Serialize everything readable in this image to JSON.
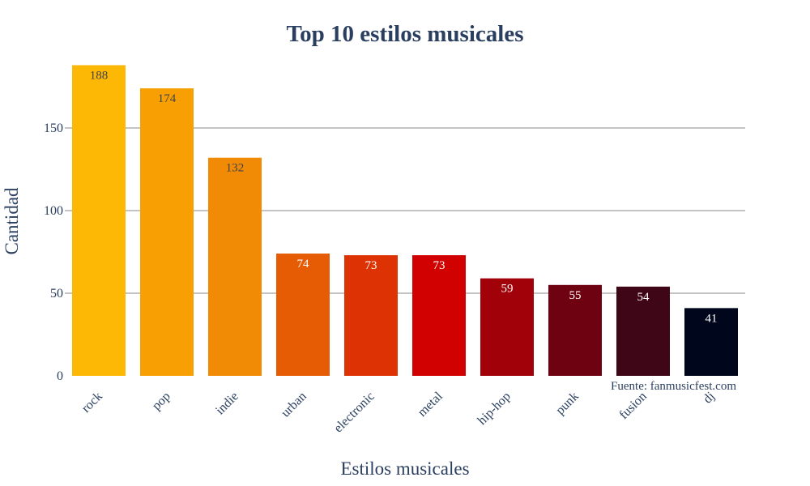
{
  "chart_data": {
    "type": "bar",
    "title": "Top 10 estilos musicales",
    "xlabel": "Estilos musicales",
    "ylabel": "Cantidad",
    "categories": [
      "rock",
      "pop",
      "indie",
      "urban",
      "electronic",
      "metal",
      "hip-hop",
      "punk",
      "fusion",
      "dj"
    ],
    "values": [
      188,
      174,
      132,
      74,
      73,
      73,
      59,
      55,
      54,
      41
    ],
    "colors": [
      "#fdb705",
      "#f8a003",
      "#f18a04",
      "#e55c05",
      "#dc3204",
      "#d10101",
      "#a10109",
      "#6e0211",
      "#3f0618",
      "#00061c"
    ],
    "label_colors": [
      "#444444",
      "#444444",
      "#444444",
      "#ffffff",
      "#ffffff",
      "#ffffff",
      "#ffffff",
      "#ffffff",
      "#ffffff",
      "#ffffff"
    ],
    "yticks": [
      0,
      50,
      100,
      150
    ],
    "ylim": [
      0,
      188
    ],
    "grid": true,
    "annotation": "Fuente: fanmusicfest.com"
  }
}
